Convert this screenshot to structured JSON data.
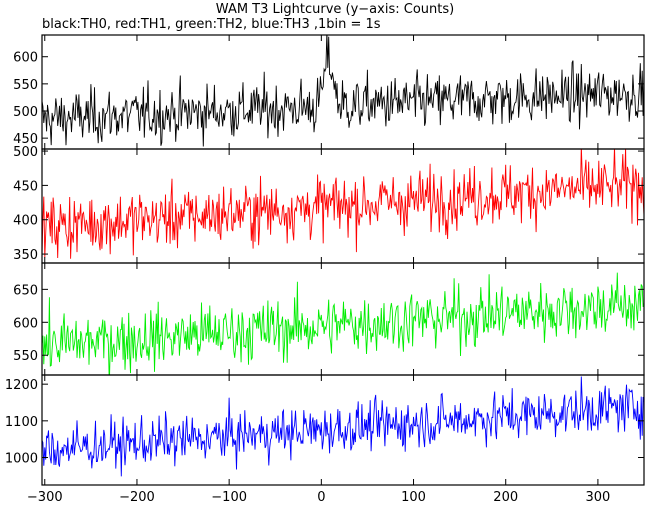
{
  "title": "WAM T3 Lightcurve (y−axis: Counts)",
  "subtitle": "black:TH0, red:TH1, green:TH2, blue:TH3 ,1bin = 1s",
  "chart_data": [
    {
      "type": "line",
      "series": [
        {
          "name": "TH0",
          "color": "#000000"
        }
      ],
      "x_range": [
        -303,
        350
      ],
      "ylim": [
        430,
        640
      ],
      "yticks": [
        450,
        500,
        550,
        600
      ],
      "baseline_start": 485,
      "baseline_end": 535,
      "noise_sd": 25,
      "flare": {
        "x": 8,
        "peak": 625,
        "width": 7
      },
      "bin_seconds": 1
    },
    {
      "type": "line",
      "series": [
        {
          "name": "TH1",
          "color": "#ff0000"
        }
      ],
      "x_range": [
        -303,
        350
      ],
      "ylim": [
        337,
        503
      ],
      "yticks": [
        350,
        400,
        450,
        500
      ],
      "baseline_start": 390,
      "baseline_end": 452,
      "noise_sd": 22,
      "bin_seconds": 1
    },
    {
      "type": "line",
      "series": [
        {
          "name": "TH2",
          "color": "#00ee00"
        }
      ],
      "x_range": [
        -303,
        350
      ],
      "ylim": [
        520,
        690
      ],
      "yticks": [
        550,
        600,
        650
      ],
      "baseline_start": 565,
      "baseline_end": 628,
      "noise_sd": 23,
      "bin_seconds": 1
    },
    {
      "type": "line",
      "series": [
        {
          "name": "TH3",
          "color": "#0000ff"
        }
      ],
      "x_range": [
        -303,
        350
      ],
      "ylim": [
        925,
        1225
      ],
      "yticks": [
        1000,
        1100,
        1200
      ],
      "baseline_start": 1020,
      "baseline_end": 1140,
      "noise_sd": 33,
      "bin_seconds": 1
    }
  ],
  "xticks": [
    -300,
    -200,
    -100,
    0,
    100,
    200,
    300
  ]
}
